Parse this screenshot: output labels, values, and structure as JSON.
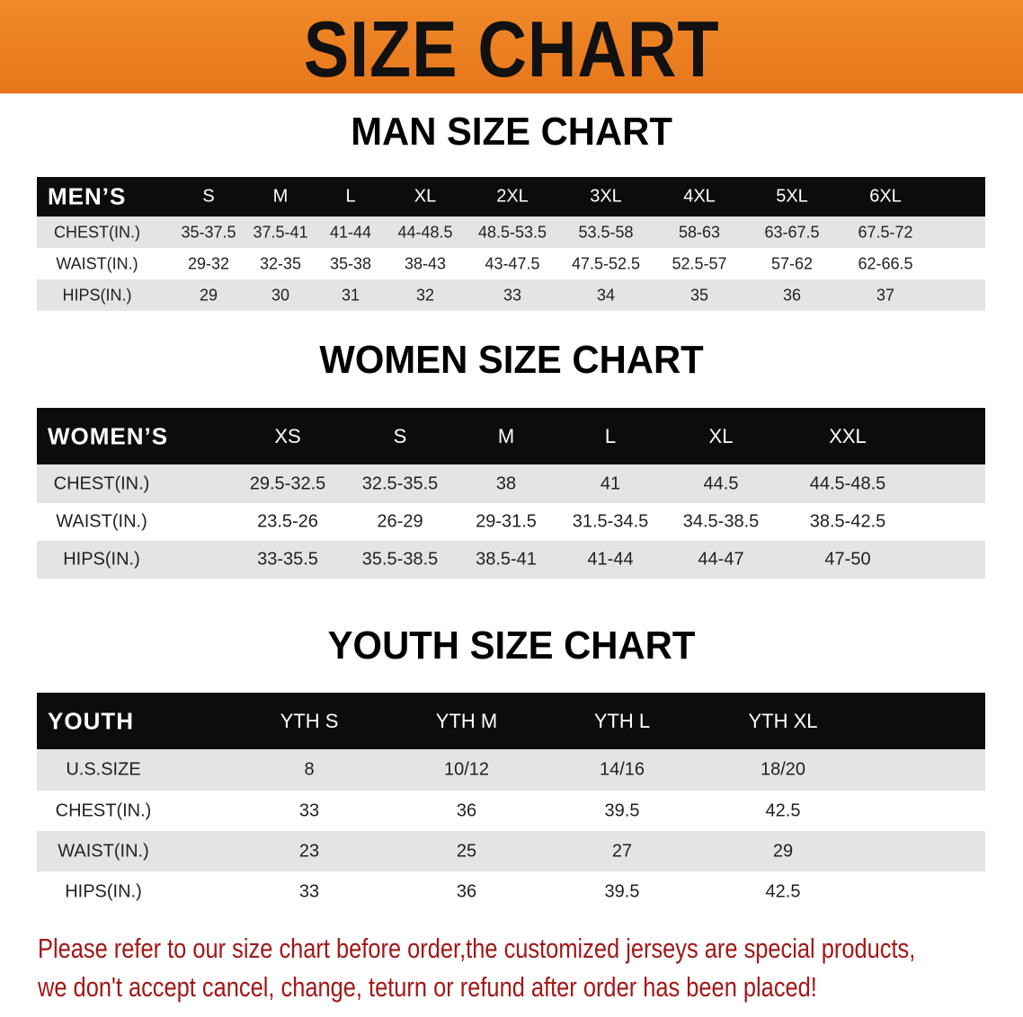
{
  "banner": {
    "title": "SIZE CHART",
    "color": "#ec801f"
  },
  "men": {
    "title": "MAN SIZE CHART",
    "headers": [
      "MEN’S",
      "S",
      "M",
      "L",
      "XL",
      "2XL",
      "3XL",
      "4XL",
      "5XL",
      "6XL"
    ],
    "rows": [
      [
        "CHEST(IN.)",
        "35-37.5",
        "37.5-41",
        "41-44",
        "44-48.5",
        "48.5-53.5",
        "53.5-58",
        "58-63",
        "63-67.5",
        "67.5-72"
      ],
      [
        "WAIST(IN.)",
        "29-32",
        "32-35",
        "35-38",
        "38-43",
        "43-47.5",
        "47.5-52.5",
        "52.5-57",
        "57-62",
        "62-66.5"
      ],
      [
        "HIPS(IN.)",
        "29",
        "30",
        "31",
        "32",
        "33",
        "34",
        "35",
        "36",
        "37"
      ]
    ]
  },
  "women": {
    "title": "WOMEN SIZE CHART",
    "headers": [
      "WOMEN’S",
      "XS",
      "S",
      "M",
      "L",
      "XL",
      "XXL"
    ],
    "rows": [
      [
        "CHEST(IN.)",
        "29.5-32.5",
        "32.5-35.5",
        "38",
        "41",
        "44.5",
        "44.5-48.5"
      ],
      [
        "WAIST(IN.)",
        "23.5-26",
        "26-29",
        "29-31.5",
        "31.5-34.5",
        "34.5-38.5",
        "38.5-42.5"
      ],
      [
        "HIPS(IN.)",
        "33-35.5",
        "35.5-38.5",
        "38.5-41",
        "41-44",
        "44-47",
        "47-50"
      ]
    ]
  },
  "youth": {
    "title": "YOUTH SIZE CHART",
    "headers": [
      "YOUTH",
      "YTH S",
      "YTH M",
      "YTH L",
      "YTH XL"
    ],
    "rows": [
      [
        "U.S.SIZE",
        "8",
        "10/12",
        "14/16",
        "18/20"
      ],
      [
        "CHEST(IN.)",
        "33",
        "36",
        "39.5",
        "42.5"
      ],
      [
        "WAIST(IN.)",
        "23",
        "25",
        "27",
        "29"
      ],
      [
        "HIPS(IN.)",
        "33",
        "36",
        "39.5",
        "42.5"
      ]
    ]
  },
  "notice": {
    "line1": "Please refer to our size chart before order,the customized jerseys are special products,",
    "line2": "we don't accept cancel, change, teturn or refund after order has been placed!",
    "color": "#a31717"
  }
}
